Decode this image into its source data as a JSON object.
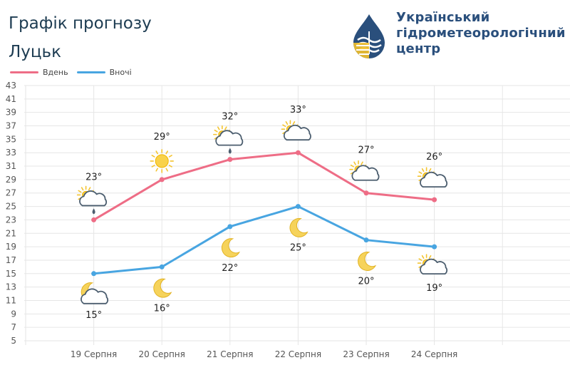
{
  "header": {
    "title": "Графік прогнозу",
    "city": "Луцьк"
  },
  "organization": {
    "line1": "Український",
    "line2": "гідрометеорологічний",
    "line3": "центр"
  },
  "colors": {
    "day": "#ee6d86",
    "night": "#48a5e1",
    "grid": "#e6e6e6",
    "title": "#1d3c52",
    "org": "#2a4f7c"
  },
  "chart_data": {
    "type": "line",
    "categories": [
      "19 Серпня",
      "20 Серпня",
      "21 Серпня",
      "22 Серпня",
      "23 Серпня",
      "24 Серпня"
    ],
    "series": [
      {
        "name": "Вдень",
        "values": [
          23,
          29,
          32,
          33,
          27,
          26
        ],
        "labels": [
          "23°",
          "29°",
          "32°",
          "33°",
          "27°",
          "26°"
        ],
        "icons": [
          "partly-cloudy-rain-icon",
          "sun-icon",
          "partly-cloudy-rain-icon",
          "partly-cloudy-icon",
          "partly-cloudy-icon",
          "partly-cloudy-icon"
        ]
      },
      {
        "name": "Вночі",
        "values": [
          15,
          16,
          22,
          25,
          20,
          19
        ],
        "labels": [
          "15°",
          "16°",
          "22°",
          "25°",
          "20°",
          "19°"
        ],
        "icons": [
          "moon-cloud-icon",
          "moon-icon",
          "moon-icon",
          "moon-icon",
          "moon-icon",
          "partly-cloudy-icon"
        ]
      }
    ],
    "y_ticks": [
      5,
      7,
      9,
      11,
      13,
      15,
      17,
      19,
      21,
      23,
      25,
      27,
      29,
      31,
      33,
      35,
      37,
      39,
      41,
      43
    ],
    "ylim": [
      5,
      43
    ],
    "grid": true,
    "legend_position": "top-left"
  }
}
